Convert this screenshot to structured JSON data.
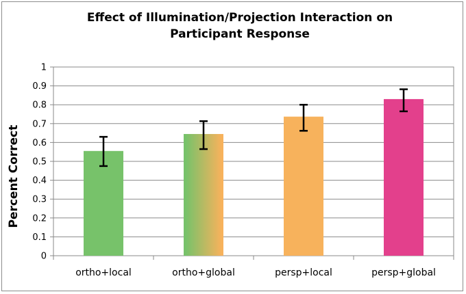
{
  "chart_data": {
    "type": "bar",
    "title": "Effect of Illumination/Projection Interaction on Participant Response",
    "title_lines": [
      "Effect of Illumination/Projection Interaction on",
      "Participant Response"
    ],
    "xlabel": "",
    "ylabel": "Percent Correct",
    "ylim": [
      0,
      1
    ],
    "yticks": [
      "0",
      "0.1",
      "0.2",
      "0.3",
      "0.4",
      "0.5",
      "0.6",
      "0.7",
      "0.8",
      "0.9",
      "1"
    ],
    "categories": [
      "ortho+local",
      "ortho+global",
      "persp+local",
      "persp+global"
    ],
    "values": [
      0.555,
      0.645,
      0.737,
      0.83
    ],
    "error_low": [
      0.475,
      0.565,
      0.662,
      0.765
    ],
    "error_high": [
      0.63,
      0.713,
      0.8,
      0.882
    ],
    "colors": [
      [
        "#77c26a",
        "#77c26a"
      ],
      [
        "#77c26a",
        "#f7b25c"
      ],
      [
        "#f7b25c",
        "#f7b25c"
      ],
      [
        "#e3408c",
        "#e3408c"
      ]
    ],
    "grid": true,
    "legend": "none"
  }
}
